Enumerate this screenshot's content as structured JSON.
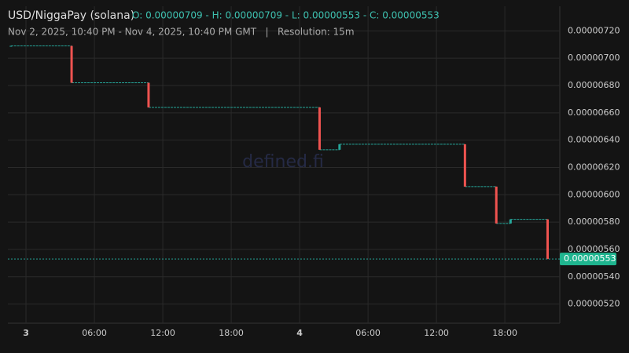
{
  "chart_data": {
    "type": "candlestick",
    "title": "USD/NiggaPay (solana)",
    "ohlc_text": "O: 0.00000709 - H: 0.00000709 - L: 0.00000553 - C: 0.00000553",
    "subtitle": "Nov 2, 2025, 10:40 PM - Nov 4, 2025, 10:40 PM GMT   |   Resolution: 15m",
    "watermark": "defined.fi",
    "last_price_label": "0.00000553",
    "up_color": "#26a69a",
    "down_color": "#ef5350",
    "grid": true,
    "x": [
      -1.33,
      4,
      10.75,
      25.75,
      27.5,
      38.5,
      41.25,
      42.5,
      45.75
    ],
    "open": [
      7.09e-06,
      7.09e-06,
      6.82e-06,
      6.64e-06,
      6.33e-06,
      6.37e-06,
      6.06e-06,
      5.79e-06,
      5.82e-06
    ],
    "high": [
      7.09e-06,
      7.09e-06,
      6.82e-06,
      6.64e-06,
      6.37e-06,
      6.37e-06,
      6.06e-06,
      5.82e-06,
      5.82e-06
    ],
    "low": [
      7.09e-06,
      6.82e-06,
      6.64e-06,
      6.33e-06,
      6.33e-06,
      6.06e-06,
      5.79e-06,
      5.79e-06,
      5.53e-06
    ],
    "close": [
      7.09e-06,
      6.82e-06,
      6.64e-06,
      6.33e-06,
      6.37e-06,
      6.06e-06,
      5.79e-06,
      5.82e-06,
      5.53e-06
    ],
    "xlim": [
      -1.59,
      46.82
    ],
    "xticks": [
      {
        "value": 0,
        "label": "3"
      },
      {
        "value": 6,
        "label": "06:00"
      },
      {
        "value": 12,
        "label": "12:00"
      },
      {
        "value": 18,
        "label": "18:00"
      },
      {
        "value": 24,
        "label": "4"
      },
      {
        "value": 30,
        "label": "06:00"
      },
      {
        "value": 36,
        "label": "12:00"
      },
      {
        "value": 42,
        "label": "18:00"
      }
    ],
    "ylim": [
      5.06e-06,
      7.38e-06
    ],
    "yticks": [
      {
        "value": 5.2e-06,
        "label": "0.00000520"
      },
      {
        "value": 5.4e-06,
        "label": "0.00000540"
      },
      {
        "value": 5.6e-06,
        "label": "0.00000560"
      },
      {
        "value": 5.8e-06,
        "label": "0.00000580"
      },
      {
        "value": 6e-06,
        "label": "0.00000600"
      },
      {
        "value": 6.2e-06,
        "label": "0.00000620"
      },
      {
        "value": 6.4e-06,
        "label": "0.00000640"
      },
      {
        "value": 6.6e-06,
        "label": "0.00000660"
      },
      {
        "value": 6.8e-06,
        "label": "0.00000680"
      },
      {
        "value": 7e-06,
        "label": "0.00000700"
      },
      {
        "value": 7.2e-06,
        "label": "0.00000720"
      }
    ]
  }
}
